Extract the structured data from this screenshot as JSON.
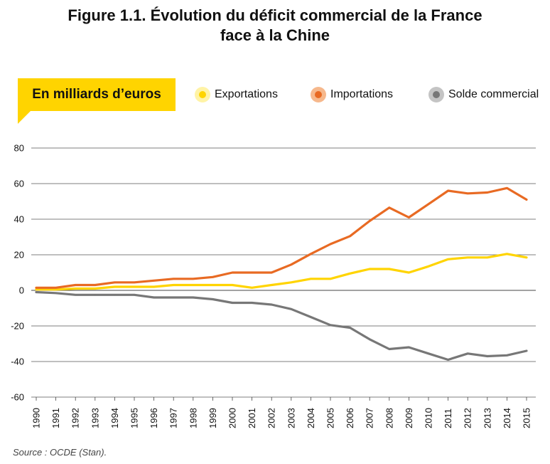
{
  "title_line1": "Figure 1.1. Évolution du déficit commercial de la France",
  "title_line2": "face à la Chine",
  "unit_label": "En milliards d’euros",
  "source": "Source : OCDE (Stan).",
  "chart_data": {
    "type": "line",
    "x": [
      "1990",
      "1991",
      "1992",
      "1993",
      "1994",
      "1995",
      "1996",
      "1997",
      "1998",
      "1999",
      "2000",
      "2001",
      "2002",
      "2003",
      "2004",
      "2005",
      "2006",
      "2007",
      "2008",
      "2009",
      "2010",
      "2011",
      "2012",
      "2013",
      "2014",
      "2015"
    ],
    "yticks": [
      "80",
      "60",
      "40",
      "20",
      "0",
      "-20",
      "-40",
      "-60"
    ],
    "ylim": [
      -60,
      80
    ],
    "grid": true,
    "legend_position": "top",
    "series": [
      {
        "name": "Exportations",
        "color": "#ffd400",
        "halo": "#fff3a6",
        "values": [
          0.5,
          0.5,
          1,
          1,
          2,
          2,
          2,
          3,
          3,
          3,
          3,
          1.5,
          3,
          4.5,
          6.5,
          6.5,
          9.5,
          12,
          12,
          10,
          13.5,
          17.5,
          18.5,
          18.5,
          20.5,
          18.5
        ]
      },
      {
        "name": "Importations",
        "color": "#e86a23",
        "halo": "#f6b88c",
        "values": [
          1.5,
          1.5,
          3,
          3,
          4.5,
          4.5,
          5.5,
          6.5,
          6.5,
          7.5,
          10,
          10,
          10,
          14.5,
          20.5,
          26,
          30.5,
          39,
          46.5,
          41,
          48.5,
          56,
          54.5,
          55,
          57.5,
          51
        ]
      },
      {
        "name": "Solde commercial",
        "color": "#777777",
        "halo": "#c4c4c4",
        "values": [
          -1,
          -1.5,
          -2.5,
          -2.5,
          -2.5,
          -2.5,
          -4,
          -4,
          -4,
          -5,
          -7,
          -7,
          -8,
          -10.5,
          -15,
          -19.5,
          -21,
          -27.5,
          -33,
          -32,
          -35.5,
          -39,
          -35.5,
          -37,
          -36.5,
          -34
        ]
      }
    ]
  }
}
